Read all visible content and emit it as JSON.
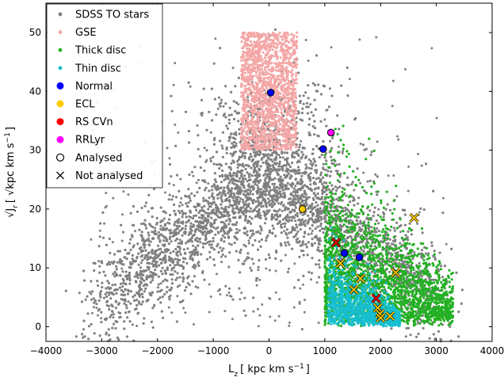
{
  "chart_data": {
    "type": "scatter",
    "xlabel": "L",
    "xlabel_sub": "z",
    "xlabel_units": "[ kpc km s",
    "xlabel_units_sup": "−1",
    "xlabel_units_end": "]",
    "ylabel_pre": "√J",
    "ylabel_sub": "r",
    "ylabel_units": "[ √kpc km s",
    "ylabel_units_sup": "−1",
    "ylabel_units_end": "]",
    "xlim": [
      -4000,
      4000
    ],
    "ylim": [
      -2.5,
      55
    ],
    "xticks": [
      -4000,
      -3000,
      -2000,
      -1000,
      0,
      1000,
      2000,
      3000,
      4000
    ],
    "xtick_labels": [
      "−4000",
      "−3000",
      "−2000",
      "−1000",
      "0",
      "1000",
      "2000",
      "3000",
      "4000"
    ],
    "yticks": [
      0,
      10,
      20,
      30,
      40,
      50
    ],
    "ytick_labels": [
      "0",
      "10",
      "20",
      "30",
      "40",
      "50"
    ],
    "grid": false,
    "legend_position": "top-left",
    "legend": [
      {
        "label": "SDSS TO stars",
        "marker": "dot",
        "color": "#808080"
      },
      {
        "label": "GSE",
        "marker": "dot",
        "color": "#f4a6a6"
      },
      {
        "label": "Thick disc",
        "marker": "dot",
        "color": "#22b022"
      },
      {
        "label": "Thin disc",
        "marker": "dot",
        "color": "#17becf"
      },
      {
        "label": "Normal",
        "marker": "circle",
        "color": "#0000ff"
      },
      {
        "label": "ECL",
        "marker": "circle",
        "color": "#ffcc00"
      },
      {
        "label": "RS CVn",
        "marker": "circle",
        "color": "#ff0000"
      },
      {
        "label": "RRLyr",
        "marker": "circle",
        "color": "#ff00ff"
      },
      {
        "label": "Analysed",
        "marker": "open-circle",
        "color": "#000000"
      },
      {
        "label": "Not analysed",
        "marker": "x",
        "color": "#000000"
      }
    ],
    "background_populations": [
      {
        "name": "SDSS TO stars",
        "color": "#808080",
        "shape": "V-shaped distribution, apex near (0, 25); arms to (-3000, 5) and (3000, 5); dense core"
      },
      {
        "name": "GSE",
        "color": "#f4a6a6",
        "region": {
          "x": [
            -500,
            500
          ],
          "y": [
            30,
            50
          ]
        }
      },
      {
        "name": "Thick disc",
        "color": "#22b022",
        "region": "Lz 1000–3300, y 0–30, elongated band"
      },
      {
        "name": "Thin disc",
        "color": "#17becf",
        "region": "Lz 1000–2400, y 0–13"
      }
    ],
    "series": [
      {
        "name": "Normal",
        "color": "#0000ff",
        "analysed": [
          [
            30,
            39.8
          ],
          [
            970,
            30.2
          ],
          [
            1350,
            12.5
          ],
          [
            1620,
            11.8
          ]
        ],
        "not_analysed": []
      },
      {
        "name": "ECL",
        "color": "#ffcc00",
        "analysed": [
          [
            600,
            20
          ]
        ],
        "not_analysed": [
          [
            1280,
            10.8
          ],
          [
            1520,
            6.3
          ],
          [
            1640,
            8.2
          ],
          [
            2270,
            9.2
          ],
          [
            2600,
            18.5
          ],
          [
            1950,
            3.2
          ],
          [
            1990,
            2.2
          ],
          [
            2000,
            1.5
          ],
          [
            2170,
            1.8
          ]
        ]
      },
      {
        "name": "RS CVn",
        "color": "#ff0000",
        "analysed": [],
        "not_analysed": [
          [
            1200,
            14.3
          ],
          [
            1920,
            4.8
          ]
        ]
      },
      {
        "name": "RRLyr",
        "color": "#ff00ff",
        "analysed": [
          [
            1110,
            33
          ]
        ],
        "not_analysed": []
      }
    ]
  }
}
